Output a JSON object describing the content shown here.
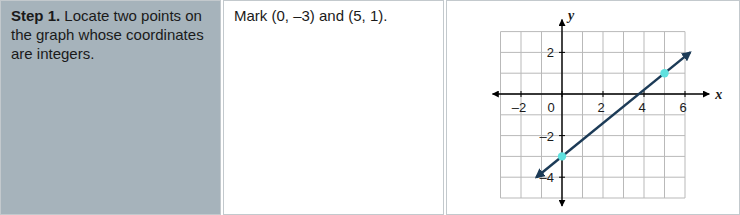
{
  "step": {
    "label": "Step 1.",
    "text": "Locate two points on the graph whose coordinates are integers."
  },
  "instruction": "Mark (0, –3) and (5, 1).",
  "chart_data": {
    "type": "line",
    "x_label": "x",
    "y_label": "y",
    "xlim": [
      -3,
      6.5
    ],
    "ylim": [
      -5,
      3
    ],
    "xticks": [
      {
        "value": -2,
        "label": "–2"
      },
      0,
      2,
      4,
      6
    ],
    "yticks": [
      2,
      {
        "value": -2,
        "label": "–2"
      },
      {
        "value": -4,
        "label": "–4"
      }
    ],
    "grid": true,
    "series": [
      {
        "type": "line",
        "color": "#1c3b57",
        "line_style": "arrow",
        "x": [
          -1.25,
          6.25
        ],
        "values": [
          -4,
          2
        ]
      },
      {
        "type": "scatter",
        "color": "#5fe1df",
        "marker": "circle",
        "x": [
          0,
          5
        ],
        "values": [
          -3,
          1
        ]
      }
    ]
  }
}
